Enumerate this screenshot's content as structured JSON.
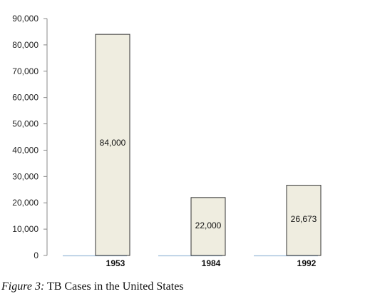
{
  "colors": {
    "bar_fill": "#efede0",
    "bar_stroke": "#333333",
    "baseline": "#9bbbd9",
    "axis": "#888888"
  },
  "caption": {
    "figure": "Figure 3:",
    "text": "TB Cases in the United States"
  },
  "chart_data": {
    "type": "bar",
    "title": "",
    "xlabel": "",
    "ylabel": "",
    "categories": [
      "1953",
      "1984",
      "1992"
    ],
    "values": [
      84000,
      22000,
      26673
    ],
    "data_labels": [
      "84,000",
      "22,000",
      "26,673"
    ],
    "ylim": [
      0,
      90000
    ],
    "yticks": [
      0,
      10000,
      20000,
      30000,
      40000,
      50000,
      60000,
      70000,
      80000,
      90000
    ],
    "ytick_labels": [
      "0",
      "10,000",
      "20,000",
      "30,000",
      "40,000",
      "50,000",
      "60,000",
      "70,000",
      "80,000",
      "90,000"
    ],
    "grid": false,
    "legend": false
  }
}
